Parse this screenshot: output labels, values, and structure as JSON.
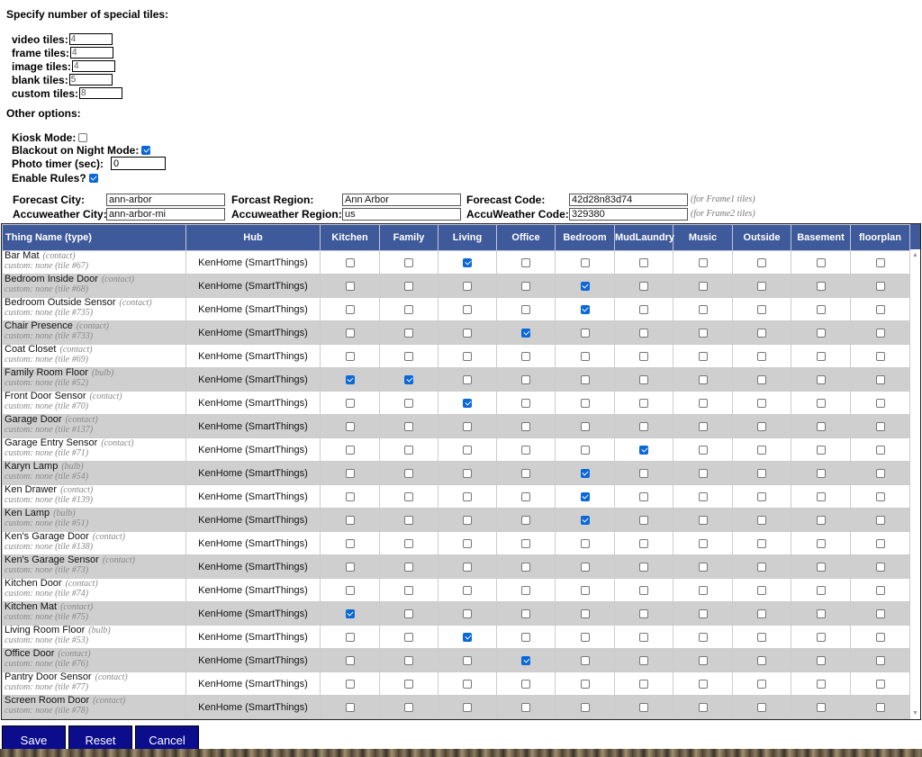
{
  "special_tiles": {
    "heading": "Specify number of special tiles:",
    "fields": [
      {
        "label": "video tiles:",
        "value": "4"
      },
      {
        "label": "frame tiles:",
        "value": "4"
      },
      {
        "label": "image tiles:",
        "value": "4"
      },
      {
        "label": "blank tiles:",
        "value": "5"
      },
      {
        "label": "custom tiles:",
        "value": "8"
      }
    ]
  },
  "other_options": {
    "heading": "Other options:",
    "kiosk_label": "Kiosk Mode:",
    "kiosk_checked": false,
    "blackout_label": "Blackout on Night Mode:",
    "blackout_checked": true,
    "photo_timer_label": "Photo timer (sec):",
    "photo_timer_value": "0",
    "rules_label": "Enable Rules?",
    "rules_checked": true
  },
  "weather": {
    "forecast_city_label": "Forecast City:",
    "forecast_city_value": "ann-arbor",
    "forecast_region_label": "Forcast Region:",
    "forecast_region_value": "Ann Arbor",
    "forecast_code_label": "Forecast Code:",
    "forecast_code_value": "42d28n83d74",
    "forecast_note": "(for Frame1 tiles)",
    "accu_city_label": "Accuweather City:",
    "accu_city_value": "ann-arbor-mi",
    "accu_region_label": "Accuweather Region:",
    "accu_region_value": "us",
    "accu_code_label": "AccuWeather Code:",
    "accu_code_value": "329380",
    "accu_note": "(for Frame2 tiles)"
  },
  "table": {
    "headers": [
      "Thing Name (type)",
      "Hub",
      "Kitchen",
      "Family",
      "Living",
      "Office",
      "Bedroom",
      "MudLaundry",
      "Music",
      "Outside",
      "Basement",
      "floorplan"
    ],
    "rows": [
      {
        "name": "Bar Mat",
        "type": "(contact)",
        "custom": "custom: none (tile #67)",
        "hub": "KenHome (SmartThings)",
        "checks": [
          false,
          false,
          true,
          false,
          false,
          false,
          false,
          false,
          false,
          false
        ]
      },
      {
        "name": "Bedroom Inside Door",
        "type": "(contact)",
        "custom": "custom: none (tile #68)",
        "hub": "KenHome (SmartThings)",
        "checks": [
          false,
          false,
          false,
          false,
          true,
          false,
          false,
          false,
          false,
          false
        ]
      },
      {
        "name": "Bedroom Outside Sensor",
        "type": "(contact)",
        "custom": "custom: none (tile #735)",
        "hub": "KenHome (SmartThings)",
        "checks": [
          false,
          false,
          false,
          false,
          true,
          false,
          false,
          false,
          false,
          false
        ]
      },
      {
        "name": "Chair Presence",
        "type": "(contact)",
        "custom": "custom: none (tile #733)",
        "hub": "KenHome (SmartThings)",
        "checks": [
          false,
          false,
          false,
          true,
          false,
          false,
          false,
          false,
          false,
          false
        ]
      },
      {
        "name": "Coat Closet",
        "type": "(contact)",
        "custom": "custom: none (tile #69)",
        "hub": "KenHome (SmartThings)",
        "checks": [
          false,
          false,
          false,
          false,
          false,
          false,
          false,
          false,
          false,
          false
        ]
      },
      {
        "name": "Family Room Floor",
        "type": "(bulb)",
        "custom": "custom: none (tile #52)",
        "hub": "KenHome (SmartThings)",
        "checks": [
          true,
          true,
          false,
          false,
          false,
          false,
          false,
          false,
          false,
          false
        ]
      },
      {
        "name": "Front Door Sensor",
        "type": "(contact)",
        "custom": "custom: none (tile #70)",
        "hub": "KenHome (SmartThings)",
        "checks": [
          false,
          false,
          true,
          false,
          false,
          false,
          false,
          false,
          false,
          false
        ]
      },
      {
        "name": "Garage Door",
        "type": "(contact)",
        "custom": "custom: none (tile #137)",
        "hub": "KenHome (SmartThings)",
        "checks": [
          false,
          false,
          false,
          false,
          false,
          false,
          false,
          false,
          false,
          false
        ]
      },
      {
        "name": "Garage Entry Sensor",
        "type": "(contact)",
        "custom": "custom: none (tile #71)",
        "hub": "KenHome (SmartThings)",
        "checks": [
          false,
          false,
          false,
          false,
          false,
          true,
          false,
          false,
          false,
          false
        ]
      },
      {
        "name": "Karyn Lamp",
        "type": "(bulb)",
        "custom": "custom: none (tile #54)",
        "hub": "KenHome (SmartThings)",
        "checks": [
          false,
          false,
          false,
          false,
          true,
          false,
          false,
          false,
          false,
          false
        ]
      },
      {
        "name": "Ken Drawer",
        "type": "(contact)",
        "custom": "custom: none (tile #139)",
        "hub": "KenHome (SmartThings)",
        "checks": [
          false,
          false,
          false,
          false,
          true,
          false,
          false,
          false,
          false,
          false
        ]
      },
      {
        "name": "Ken Lamp",
        "type": "(bulb)",
        "custom": "custom: none (tile #51)",
        "hub": "KenHome (SmartThings)",
        "checks": [
          false,
          false,
          false,
          false,
          true,
          false,
          false,
          false,
          false,
          false
        ]
      },
      {
        "name": "Ken's Garage Door",
        "type": "(contact)",
        "custom": "custom: none (tile #138)",
        "hub": "KenHome (SmartThings)",
        "checks": [
          false,
          false,
          false,
          false,
          false,
          false,
          false,
          false,
          false,
          false
        ]
      },
      {
        "name": "Ken's Garage Sensor",
        "type": "(contact)",
        "custom": "custom: none (tile #73)",
        "hub": "KenHome (SmartThings)",
        "checks": [
          false,
          false,
          false,
          false,
          false,
          false,
          false,
          false,
          false,
          false
        ]
      },
      {
        "name": "Kitchen Door",
        "type": "(contact)",
        "custom": "custom: none (tile #74)",
        "hub": "KenHome (SmartThings)",
        "checks": [
          false,
          false,
          false,
          false,
          false,
          false,
          false,
          false,
          false,
          false
        ]
      },
      {
        "name": "Kitchen Mat",
        "type": "(contact)",
        "custom": "custom: none (tile #75)",
        "hub": "KenHome (SmartThings)",
        "checks": [
          true,
          false,
          false,
          false,
          false,
          false,
          false,
          false,
          false,
          false
        ]
      },
      {
        "name": "Living Room Floor",
        "type": "(bulb)",
        "custom": "custom: none (tile #53)",
        "hub": "KenHome (SmartThings)",
        "checks": [
          false,
          false,
          true,
          false,
          false,
          false,
          false,
          false,
          false,
          false
        ]
      },
      {
        "name": "Office Door",
        "type": "(contact)",
        "custom": "custom: none (tile #76)",
        "hub": "KenHome (SmartThings)",
        "checks": [
          false,
          false,
          false,
          true,
          false,
          false,
          false,
          false,
          false,
          false
        ]
      },
      {
        "name": "Pantry Door Sensor",
        "type": "(contact)",
        "custom": "custom: none (tile #77)",
        "hub": "KenHome (SmartThings)",
        "checks": [
          false,
          false,
          false,
          false,
          false,
          false,
          false,
          false,
          false,
          false
        ]
      },
      {
        "name": "Screen Room Door",
        "type": "(contact)",
        "custom": "custom: none (tile #78)",
        "hub": "KenHome (SmartThings)",
        "checks": [
          false,
          false,
          false,
          false,
          false,
          false,
          false,
          false,
          false,
          false
        ]
      }
    ]
  },
  "buttons": {
    "save": "Save",
    "reset": "Reset",
    "cancel": "Cancel"
  },
  "colors": {
    "header_bg": "#3f5a9b",
    "button_bg": "#0b0d8c",
    "checkbox_on": "#0b68d8",
    "row_alt": "#cfcfcf"
  }
}
